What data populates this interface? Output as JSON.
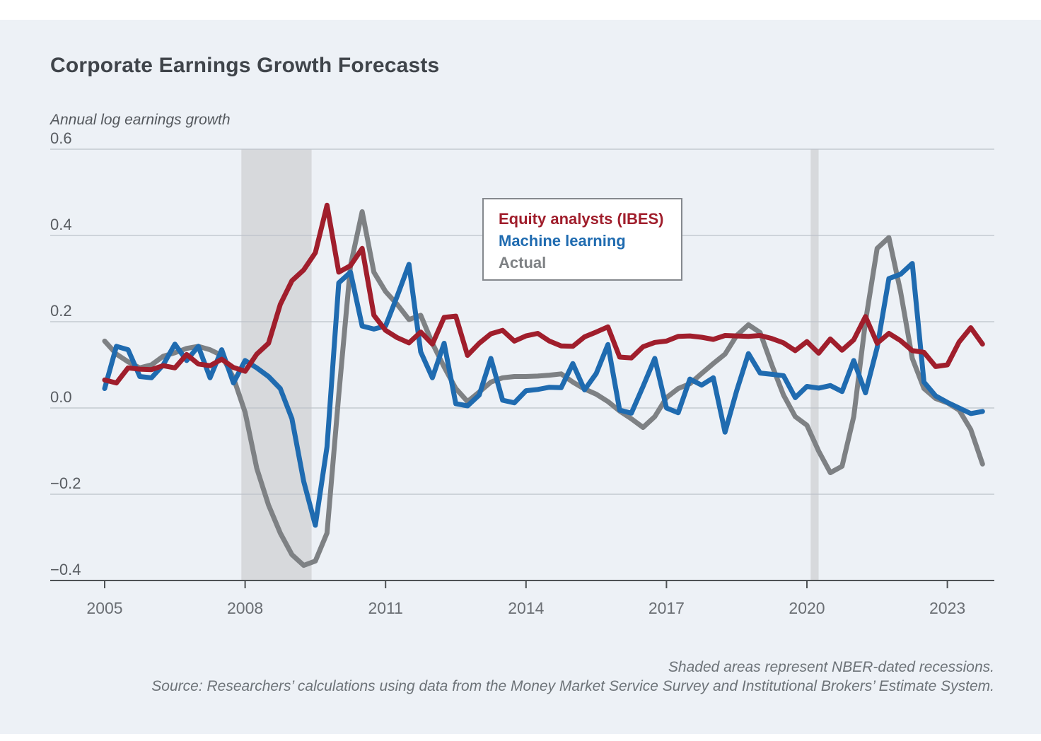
{
  "header": {
    "title": "Corporate Earnings Growth Forecasts",
    "subtitle": "Annual log earnings growth"
  },
  "legend": {
    "items": [
      {
        "label": "Equity analysts (IBES)",
        "color": "#a01e2c"
      },
      {
        "label": "Machine learning",
        "color": "#1f6bb0"
      },
      {
        "label": "Actual",
        "color": "#7e8184"
      }
    ]
  },
  "captions": {
    "line1": "Shaded areas represent NBER-dated recessions.",
    "line2": "Source: Researchers’ calculations using data from the Money Market Service Survey and Institutional Brokers’ Estimate System."
  },
  "colors": {
    "background": "#edf1f6",
    "grid": "#bdc2c9",
    "axis": "#4e5255",
    "tick_label": "#6b6f74",
    "y_label": "#585c61",
    "recession_band": "#d7d9dc",
    "red": "#a01e2c",
    "blue": "#1f6bb0",
    "gray": "#7e8184"
  },
  "chart_data": {
    "type": "line",
    "title": "Corporate Earnings Growth Forecasts",
    "ylabel": "Annual log earnings growth",
    "ylim": [
      -0.4,
      0.6
    ],
    "grid": true,
    "legend_position": "upper middle",
    "x_start": 2005.0,
    "x_step": 0.25,
    "x_ticks": [
      2005,
      2008,
      2011,
      2014,
      2017,
      2020,
      2023
    ],
    "y_ticks": [
      {
        "label": "0.6",
        "value": 0.6
      },
      {
        "label": "0.4",
        "value": 0.4
      },
      {
        "label": "0.2",
        "value": 0.2
      },
      {
        "label": "0.0",
        "value": 0.0
      },
      {
        "label": "−0.2",
        "value": -0.2
      },
      {
        "label": "−0.4",
        "value": -0.4
      }
    ],
    "recession_bands": [
      {
        "start": 2007.92,
        "end": 2009.42
      },
      {
        "start": 2020.08,
        "end": 2020.25
      }
    ],
    "series": [
      {
        "name": "Actual",
        "color": "#7e8184",
        "values": [
          0.155,
          0.125,
          0.107,
          0.093,
          0.1,
          0.12,
          0.128,
          0.138,
          0.143,
          0.135,
          0.122,
          0.07,
          -0.01,
          -0.14,
          -0.225,
          -0.29,
          -0.34,
          -0.365,
          -0.355,
          -0.29,
          0.03,
          0.33,
          0.455,
          0.315,
          0.27,
          0.24,
          0.205,
          0.215,
          0.15,
          0.095,
          0.045,
          0.015,
          0.037,
          0.06,
          0.07,
          0.073,
          0.073,
          0.074,
          0.076,
          0.079,
          0.06,
          0.044,
          0.032,
          0.015,
          -0.007,
          -0.025,
          -0.045,
          -0.02,
          0.024,
          0.045,
          0.056,
          0.08,
          0.103,
          0.125,
          0.168,
          0.193,
          0.175,
          0.1,
          0.03,
          -0.02,
          -0.04,
          -0.1,
          -0.15,
          -0.135,
          -0.02,
          0.2,
          0.37,
          0.395,
          0.27,
          0.115,
          0.045,
          0.022,
          0.012,
          -0.005,
          -0.05,
          -0.13
        ]
      },
      {
        "name": "Machine learning",
        "color": "#1f6bb0",
        "values": [
          0.045,
          0.143,
          0.135,
          0.073,
          0.07,
          0.1,
          0.148,
          0.11,
          0.143,
          0.07,
          0.135,
          0.058,
          0.11,
          0.093,
          0.073,
          0.045,
          -0.025,
          -0.17,
          -0.272,
          -0.09,
          0.29,
          0.315,
          0.19,
          0.183,
          0.19,
          0.26,
          0.333,
          0.13,
          0.07,
          0.15,
          0.01,
          0.005,
          0.03,
          0.115,
          0.018,
          0.012,
          0.04,
          0.043,
          0.048,
          0.047,
          0.103,
          0.042,
          0.08,
          0.147,
          -0.005,
          -0.012,
          0.05,
          0.115,
          0.0,
          -0.011,
          0.067,
          0.053,
          0.07,
          -0.056,
          0.04,
          0.126,
          0.081,
          0.078,
          0.075,
          0.024,
          0.05,
          0.046,
          0.052,
          0.038,
          0.11,
          0.035,
          0.14,
          0.3,
          0.31,
          0.335,
          0.06,
          0.028,
          0.013,
          0.0,
          -0.013,
          -0.008
        ]
      },
      {
        "name": "Equity analysts (IBES)",
        "color": "#a01e2c",
        "values": [
          0.065,
          0.058,
          0.093,
          0.09,
          0.089,
          0.098,
          0.093,
          0.124,
          0.102,
          0.098,
          0.113,
          0.094,
          0.085,
          0.125,
          0.15,
          0.24,
          0.295,
          0.32,
          0.36,
          0.47,
          0.315,
          0.33,
          0.37,
          0.215,
          0.18,
          0.163,
          0.151,
          0.176,
          0.148,
          0.21,
          0.213,
          0.122,
          0.15,
          0.172,
          0.18,
          0.155,
          0.167,
          0.173,
          0.155,
          0.144,
          0.143,
          0.165,
          0.176,
          0.188,
          0.118,
          0.116,
          0.142,
          0.152,
          0.155,
          0.166,
          0.167,
          0.164,
          0.159,
          0.168,
          0.167,
          0.166,
          0.168,
          0.161,
          0.151,
          0.133,
          0.154,
          0.127,
          0.16,
          0.134,
          0.158,
          0.212,
          0.15,
          0.173,
          0.156,
          0.133,
          0.129,
          0.096,
          0.1,
          0.153,
          0.186,
          0.148
        ]
      }
    ]
  }
}
